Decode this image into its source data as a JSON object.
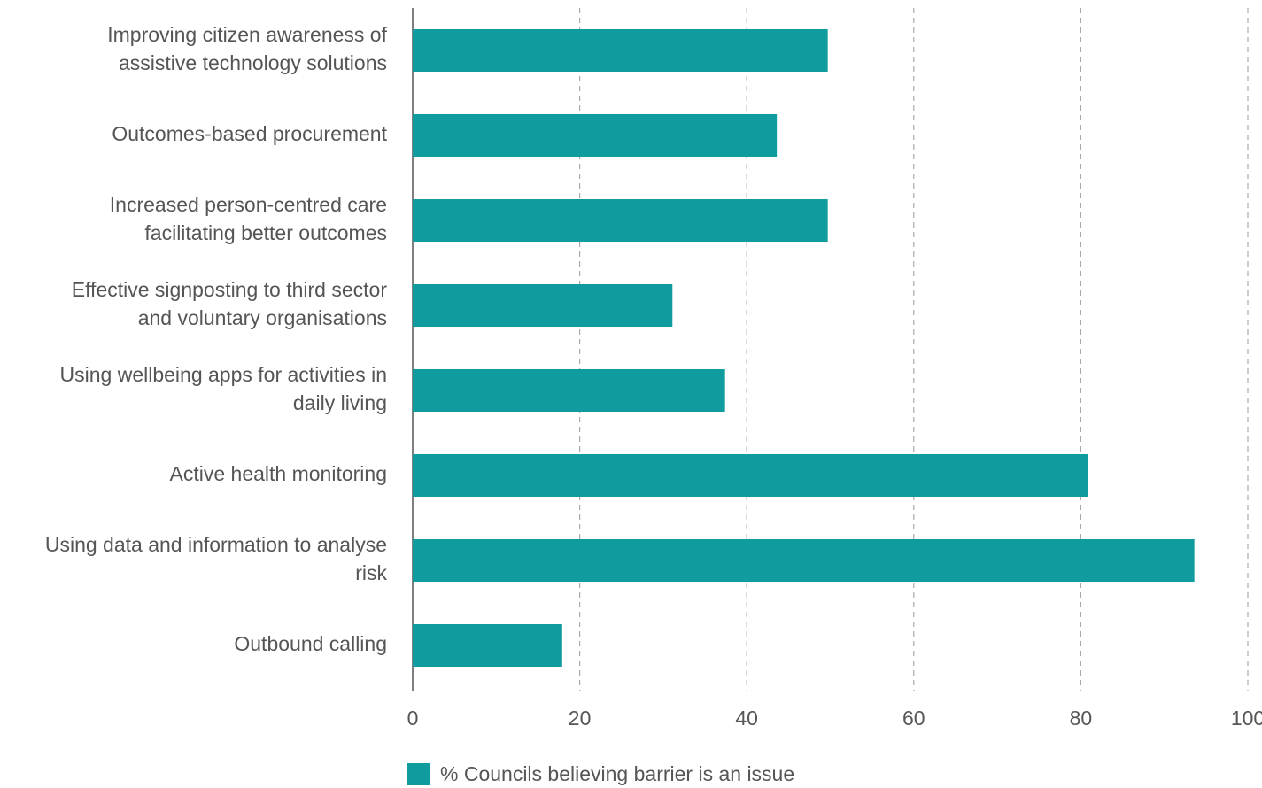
{
  "chart_data": {
    "type": "hbar",
    "categories": [
      [
        "Improving citizen awareness of",
        "assistive technology solutions"
      ],
      [
        "Outcomes-based procurement"
      ],
      [
        "Increased person-centred care",
        "facilitating better outcomes"
      ],
      [
        "Effective signposting to third sector",
        "and voluntary organisations"
      ],
      [
        "Using wellbeing apps for activities in",
        "daily living"
      ],
      [
        "Active health monitoring"
      ],
      [
        "Using data and information to analyse",
        "risk"
      ],
      [
        "Outbound calling"
      ]
    ],
    "series": [
      {
        "name": "% Councils believing barrier is an issue",
        "color": "#109c9f",
        "values": [
          49.7,
          43.6,
          49.7,
          31.1,
          37.4,
          80.9,
          93.6,
          17.9
        ]
      }
    ],
    "xlim": [
      0,
      100
    ],
    "xticks": [
      0,
      20,
      40,
      60,
      80,
      100
    ],
    "grid": true
  }
}
